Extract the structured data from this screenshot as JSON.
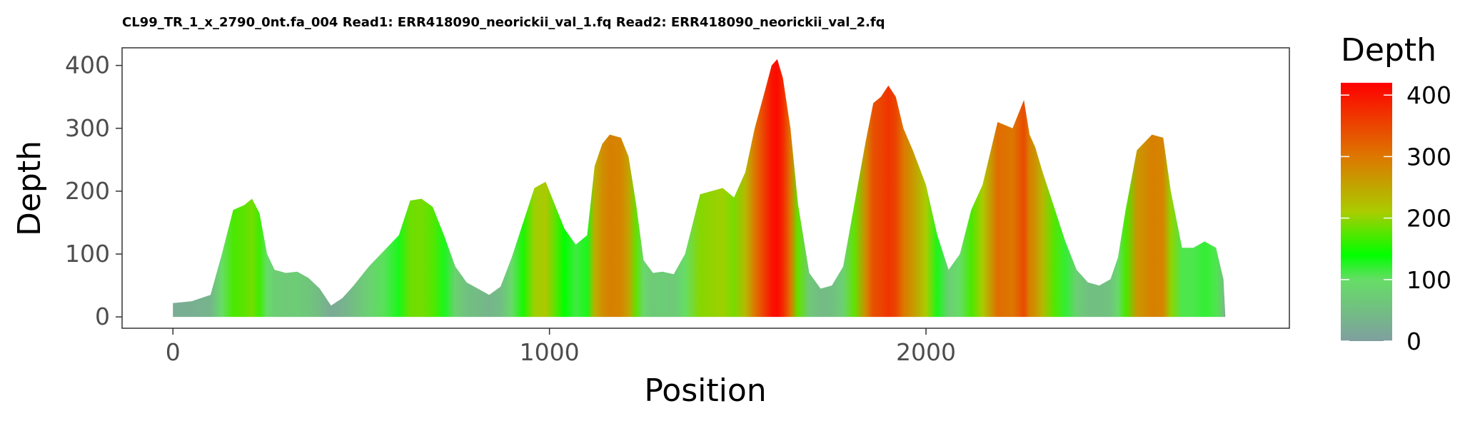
{
  "chart_data": {
    "type": "area",
    "title": "CL99_TR_1_x_2790_0nt.fa_004 Read1: ERR418090_neorickii_val_1.fq Read2: ERR418090_neorickii_val_2.fq",
    "xlabel": "Position",
    "ylabel": "Depth",
    "xlim": [
      -135,
      2965
    ],
    "ylim": [
      -18,
      428
    ],
    "x_ticks": [
      0,
      1000,
      2000
    ],
    "y_ticks": [
      0,
      100,
      200,
      300,
      400
    ],
    "grid": false,
    "color_scale": {
      "title": "Depth",
      "ticks": [
        0,
        100,
        200,
        300,
        400
      ],
      "range": [
        0,
        420
      ],
      "colors": [
        {
          "value": 0,
          "color": "#7f9f9f"
        },
        {
          "value": 100,
          "color": "#66dd66"
        },
        {
          "value": 140,
          "color": "#00ff00"
        },
        {
          "value": 210,
          "color": "#aacc00"
        },
        {
          "value": 300,
          "color": "#dd7700"
        },
        {
          "value": 420,
          "color": "#ff0000"
        }
      ]
    },
    "series": [
      {
        "x": [
          0,
          50,
          100,
          130,
          160,
          190,
          210,
          230,
          250,
          270,
          300,
          330,
          360,
          390,
          420,
          450,
          480,
          520,
          560,
          600,
          630,
          660,
          690,
          720,
          750,
          780,
          810,
          840,
          870,
          900,
          930,
          960,
          990,
          1010,
          1040,
          1070,
          1100,
          1120,
          1140,
          1160,
          1190,
          1210,
          1230,
          1250,
          1275,
          1300,
          1330,
          1360,
          1400,
          1430,
          1460,
          1490,
          1520,
          1545,
          1570,
          1590,
          1605,
          1620,
          1640,
          1660,
          1690,
          1720,
          1750,
          1780,
          1810,
          1840,
          1860,
          1880,
          1900,
          1920,
          1940,
          1965,
          2000,
          2030,
          2060,
          2090,
          2120,
          2150,
          2190,
          2230,
          2260,
          2275,
          2290,
          2310,
          2340,
          2370,
          2400,
          2430,
          2460,
          2490,
          2510,
          2530,
          2560,
          2600,
          2630,
          2650,
          2680,
          2710,
          2740,
          2770,
          2790,
          2795,
          2815,
          2830
        ],
        "y": [
          22,
          25,
          35,
          100,
          170,
          178,
          188,
          165,
          100,
          75,
          70,
          72,
          62,
          45,
          18,
          30,
          50,
          80,
          105,
          130,
          185,
          188,
          175,
          130,
          80,
          55,
          45,
          35,
          48,
          95,
          150,
          205,
          215,
          185,
          140,
          115,
          130,
          240,
          275,
          290,
          285,
          255,
          180,
          90,
          70,
          72,
          68,
          100,
          195,
          200,
          205,
          190,
          230,
          300,
          355,
          400,
          410,
          380,
          300,
          180,
          70,
          45,
          50,
          80,
          180,
          280,
          340,
          350,
          368,
          350,
          300,
          265,
          210,
          130,
          75,
          100,
          170,
          210,
          310,
          300,
          345,
          290,
          270,
          230,
          175,
          120,
          75,
          55,
          50,
          60,
          95,
          170,
          265,
          290,
          285,
          200,
          110,
          110,
          120,
          110,
          60,
          0,
          0,
          0
        ]
      }
    ]
  }
}
